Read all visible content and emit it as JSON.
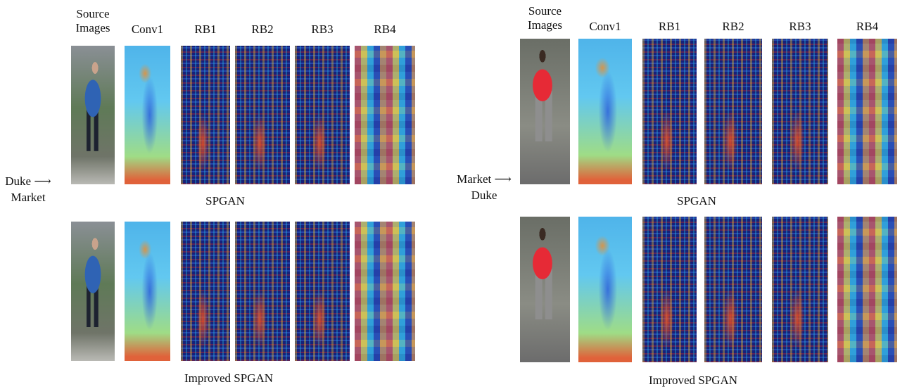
{
  "panels": [
    {
      "domain_lines": [
        "Duke ⟶",
        "Market"
      ],
      "columns": [
        "Source Images",
        "Conv1",
        "RB1",
        "RB2",
        "RB3",
        "RB4"
      ],
      "rows": [
        {
          "caption": "SPGAN"
        },
        {
          "caption": "Improved SPGAN"
        }
      ]
    },
    {
      "domain_lines": [
        "Market ⟶",
        "Duke"
      ],
      "columns": [
        "Source Images",
        "Conv1",
        "RB1",
        "RB2",
        "RB3",
        "RB4"
      ],
      "rows": [
        {
          "caption": "SPGAN"
        },
        {
          "caption": "Improved SPGAN"
        }
      ]
    }
  ]
}
